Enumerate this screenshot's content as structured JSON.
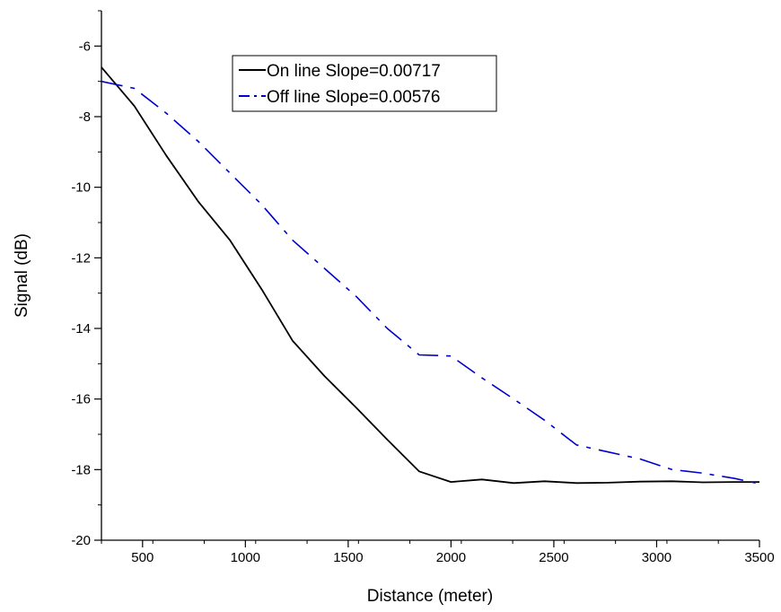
{
  "chart_data": {
    "type": "line",
    "title": "",
    "xlabel": "Distance (meter)",
    "ylabel": "Signal (dB)",
    "xlim": [
      300,
      3500
    ],
    "ylim": [
      -20,
      -5
    ],
    "xticks": [
      500,
      1000,
      1500,
      2000,
      2500,
      3000,
      3500
    ],
    "yticks": [
      -6,
      -8,
      -10,
      -12,
      -14,
      -16,
      -18,
      -20
    ],
    "grid": false,
    "legend_position": "top-center",
    "series": [
      {
        "name": "On line Slope=0.00717",
        "color": "#000000",
        "style": "solid",
        "x": [
          300,
          460,
          615,
          770,
          925,
          1080,
          1230,
          1385,
          1540,
          1690,
          1845,
          2000,
          2150,
          2305,
          2455,
          2610,
          2765,
          2920,
          3075,
          3225,
          3380,
          3500
        ],
        "y": [
          -6.6,
          -7.7,
          -9.1,
          -10.4,
          -11.5,
          -12.9,
          -14.35,
          -15.35,
          -16.25,
          -17.15,
          -18.05,
          -18.35,
          -18.28,
          -18.38,
          -18.33,
          -18.38,
          -18.37,
          -18.34,
          -18.33,
          -18.36,
          -18.35,
          -18.35
        ]
      },
      {
        "name": "Off line Slope=0.00576",
        "color": "#0000cc",
        "style": "dashdot",
        "x": [
          300,
          460,
          615,
          770,
          925,
          1080,
          1230,
          1385,
          1540,
          1690,
          1845,
          2000,
          2150,
          2305,
          2455,
          2610,
          2765,
          2920,
          3075,
          3225,
          3380,
          3500
        ],
        "y": [
          -7.0,
          -7.2,
          -7.9,
          -8.7,
          -9.6,
          -10.5,
          -11.5,
          -12.3,
          -13.1,
          -14.0,
          -14.75,
          -14.78,
          -15.4,
          -16.0,
          -16.6,
          -17.3,
          -17.5,
          -17.7,
          -18.0,
          -18.1,
          -18.25,
          -18.4
        ]
      }
    ]
  }
}
